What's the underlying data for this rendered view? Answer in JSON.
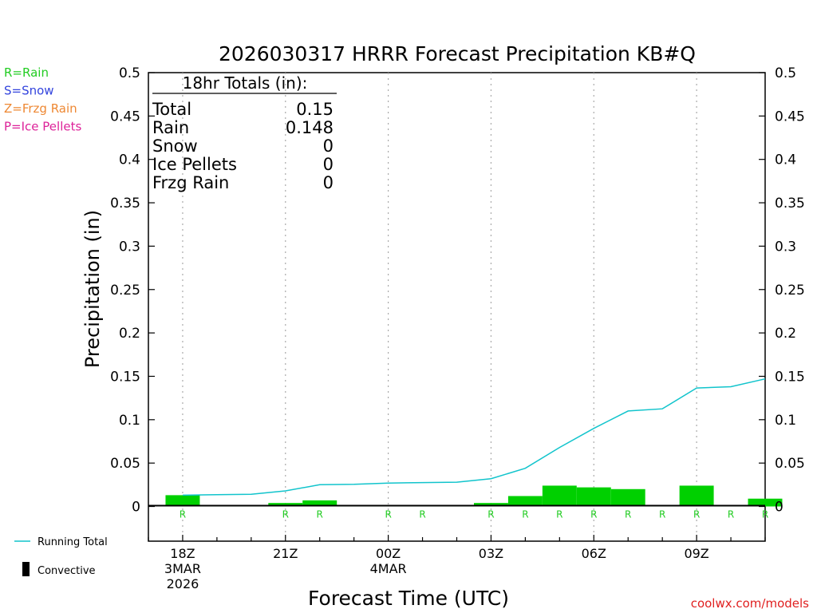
{
  "chart_data": {
    "type": "bar",
    "title": "2026030317 HRRR Forecast Precipitation KB#Q",
    "xlabel": "Forecast Time (UTC)",
    "ylabel": "Precipitation (in)",
    "ylim": [
      -0.04,
      0.5
    ],
    "y_ticks": [
      "0.5",
      "0.45",
      "0.4",
      "0.35",
      "0.3",
      "0.25",
      "0.2",
      "0.15",
      "0.1",
      "0.05",
      "0"
    ],
    "y_tick_values": [
      0.5,
      0.45,
      0.4,
      0.35,
      0.3,
      0.25,
      0.2,
      0.15,
      0.1,
      0.05,
      0
    ],
    "xlim": [
      -1,
      17
    ],
    "x_ticks": [
      {
        "hour": 0,
        "label": "18Z",
        "sub1": "3MAR",
        "sub2": "2026"
      },
      {
        "hour": 3,
        "label": "21Z",
        "sub1": "",
        "sub2": ""
      },
      {
        "hour": 6,
        "label": "00Z",
        "sub1": "4MAR",
        "sub2": ""
      },
      {
        "hour": 9,
        "label": "03Z",
        "sub1": "",
        "sub2": ""
      },
      {
        "hour": 12,
        "label": "06Z",
        "sub1": "",
        "sub2": ""
      },
      {
        "hour": 15,
        "label": "09Z",
        "sub1": "",
        "sub2": ""
      }
    ],
    "hours": [
      0,
      1,
      2,
      3,
      4,
      5,
      6,
      7,
      8,
      9,
      10,
      11,
      12,
      13,
      14,
      15,
      16,
      17
    ],
    "hourly_precip": [
      0.013,
      0.0005,
      0.0005,
      0.004,
      0.007,
      0.0005,
      0.001,
      0.0005,
      0.0005,
      0.004,
      0.012,
      0.024,
      0.022,
      0.02,
      0.0015,
      0.024,
      0.0015,
      0.009
    ],
    "running_total": [
      0.013,
      0.0135,
      0.014,
      0.018,
      0.025,
      0.0255,
      0.027,
      0.0275,
      0.028,
      0.032,
      0.044,
      0.068,
      0.09,
      0.11,
      0.1125,
      0.1365,
      0.138,
      0.147
    ],
    "precip_type_labels": [
      "R",
      "",
      "",
      "R",
      "R",
      "",
      "R",
      "R",
      "",
      "R",
      "R",
      "R",
      "R",
      "R",
      "R",
      "R",
      "R",
      "R"
    ],
    "totals_box": {
      "header": "18hr Totals (in):",
      "rows": [
        {
          "label": "Total",
          "value": "0.15"
        },
        {
          "label": "Rain",
          "value": "0.148"
        },
        {
          "label": "Snow",
          "value": "0"
        },
        {
          "label": "Ice Pellets",
          "value": "0"
        },
        {
          "label": "Frzg Rain",
          "value": "0"
        }
      ]
    },
    "type_legend": [
      {
        "text": "R=Rain",
        "color": "#22cc22"
      },
      {
        "text": "S=Snow",
        "color": "#3344dd"
      },
      {
        "text": "Z=Frzg Rain",
        "color": "#ee8833"
      },
      {
        "text": "P=Ice Pellets",
        "color": "#dd2299"
      }
    ],
    "series_legend": [
      {
        "name": "Running Total",
        "color": "#11c4cc"
      },
      {
        "name": "Convective",
        "color": "#000000"
      }
    ],
    "credit": "coolwx.com/models",
    "colors": {
      "bar": "#00d000",
      "running_total": "#11c4cc",
      "rain_label": "#22cc22",
      "credit": "#e02020"
    }
  }
}
